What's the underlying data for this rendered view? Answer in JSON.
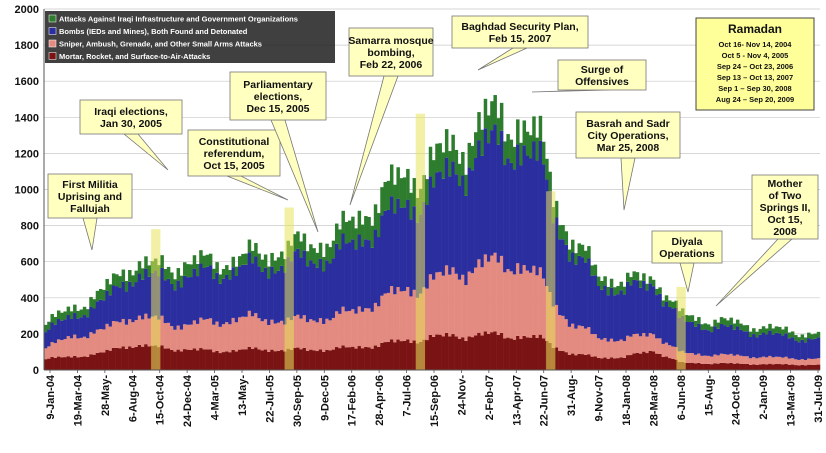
{
  "chart_data": {
    "type": "bar",
    "stacked": true,
    "ylim": [
      0,
      2000
    ],
    "yticks": [
      "0",
      "200",
      "400",
      "600",
      "800",
      "1000",
      "1200",
      "1400",
      "1600",
      "1800",
      "2000"
    ],
    "x_tick_labels": [
      "9-Jan-04",
      "19-Mar-04",
      "28-May-",
      "6-Aug-04",
      "15-Oct-04",
      "24-Dec-04",
      "4-Mar-05",
      "13-May-",
      "22-Jul-05",
      "30-Sep-05",
      "9-Dec-05",
      "17-Feb-06",
      "28-Apr-06",
      "7-Jul-06",
      "15-Sep-06",
      "24-Nov-",
      "2-Feb-07",
      "13-Apr-07",
      "22-Jun-07",
      "31-Aug-",
      "9-Nov-07",
      "18-Jan-08",
      "28-Mar-08",
      "6-Jun-08",
      "15-Aug-",
      "24-Oct-08",
      "2-Jan-09",
      "13-Mar-09",
      "31-Jul-09"
    ],
    "legend_position": "top-left",
    "series": [
      {
        "name": "Attacks Against Iraqi Infrastructure and Government Organizations",
        "color": "#2e7d2e",
        "values": [
          40,
          45,
          55,
          70,
          60,
          75,
          60,
          55,
          75,
          85,
          90,
          115,
          145,
          165,
          150,
          135,
          150,
          140,
          120,
          70,
          55,
          45,
          38,
          36,
          35,
          35,
          34,
          33,
          28
        ]
      },
      {
        "name": "Bombs (IEDs and Mines), Both Found and Detonated",
        "color": "#2b2e9e",
        "values": [
          90,
          115,
          150,
          220,
          230,
          265,
          270,
          275,
          290,
          325,
          330,
          360,
          420,
          460,
          500,
          570,
          640,
          660,
          610,
          390,
          305,
          265,
          280,
          175,
          155,
          145,
          130,
          115,
          108
        ]
      },
      {
        "name": "Sniper, Ambush, Grenade, and Other Small Arms Attacks",
        "color": "#e38b80",
        "values": [
          60,
          115,
          120,
          160,
          150,
          135,
          160,
          175,
          170,
          160,
          175,
          190,
          245,
          275,
          310,
          360,
          390,
          410,
          320,
          165,
          115,
          95,
          100,
          55,
          48,
          45,
          40,
          35,
          33
        ]
      },
      {
        "name": "Mortar, Rocket, and Surface-to-Air-Attacks",
        "color": "#7a1414",
        "values": [
          60,
          75,
          90,
          140,
          125,
          115,
          105,
          110,
          115,
          110,
          115,
          120,
          140,
          160,
          180,
          190,
          195,
          190,
          170,
          90,
          70,
          70,
          110,
          40,
          37,
          35,
          32,
          30,
          28
        ]
      }
    ],
    "annotations": [
      {
        "text": [
          "First Militia",
          "Uprising and",
          "Fallujah"
        ]
      },
      {
        "text": [
          "Iraqi elections,",
          "Jan 30, 2005"
        ]
      },
      {
        "text": [
          "Constitutional",
          "referendum,",
          "Oct 15, 2005"
        ]
      },
      {
        "text": [
          "Parliamentary",
          "elections,",
          "Dec 15, 2005"
        ]
      },
      {
        "text": [
          "Samarra mosque",
          "bombing,",
          "Feb 22, 2006"
        ]
      },
      {
        "text": [
          "Baghdad Security Plan,",
          "Feb 15, 2007"
        ]
      },
      {
        "text": [
          "Surge of",
          "Offensives"
        ]
      },
      {
        "text": [
          "Basrah and Sadr",
          "City Operations,",
          "Mar 25, 2008"
        ]
      },
      {
        "text": [
          "Diyala",
          "Operations"
        ]
      },
      {
        "text": [
          "Mother",
          "of Two",
          "Springs II,",
          "Oct 15,",
          "2008"
        ]
      }
    ],
    "ramadan": {
      "title": "Ramadan",
      "lines": [
        "Oct 16- Nov 14, 2004",
        "Oct 5 - Nov 4, 2005",
        "Sep 24 – Oct 23, 2006",
        "Sep 13 – Oct 13, 2007",
        "Sep 1 – Sep 30, 2008",
        "Aug 24 – Sep 20, 2009"
      ]
    }
  }
}
